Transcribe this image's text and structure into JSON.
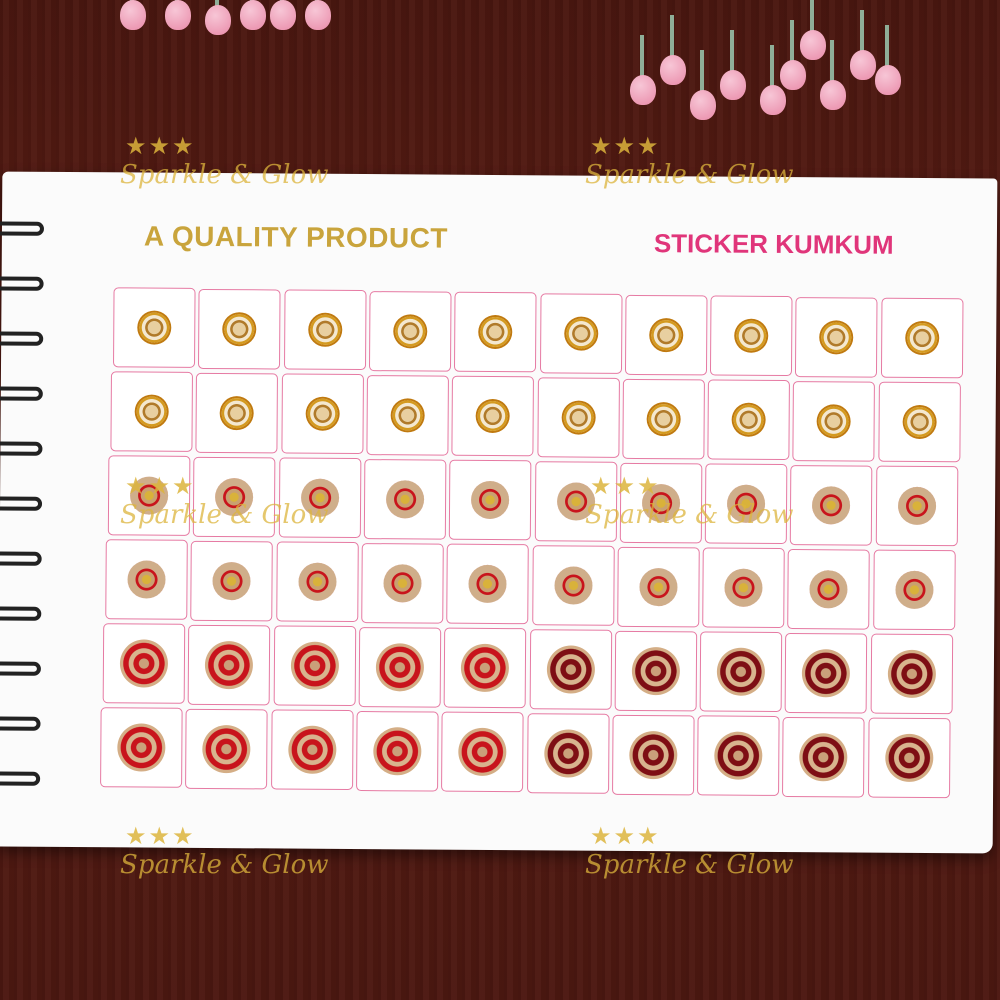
{
  "card": {
    "title_left": "A QUALITY PRODUCT",
    "title_right": "STICKER KUMKUM"
  },
  "watermark": {
    "text": "Sparkle & Glow",
    "stars": "★★★"
  },
  "sticker_grid": {
    "rows": [
      {
        "style": "gold-ring-small",
        "count": 10
      },
      {
        "style": "gold-ring-small",
        "count": 10
      },
      {
        "style": "red-stone-medium",
        "count": 10
      },
      {
        "style": "red-stone-medium",
        "count": 10
      },
      {
        "style": "red-stone-large",
        "count": 10,
        "dark_from_column": 6
      },
      {
        "style": "red-stone-large",
        "count": 10,
        "dark_from_column": 6
      }
    ]
  },
  "colors": {
    "gold": "#c9a43c",
    "pink": "#e0357a",
    "red": "#c8141c",
    "maroon": "#7e0e14",
    "grid_line": "#e67aa3"
  }
}
